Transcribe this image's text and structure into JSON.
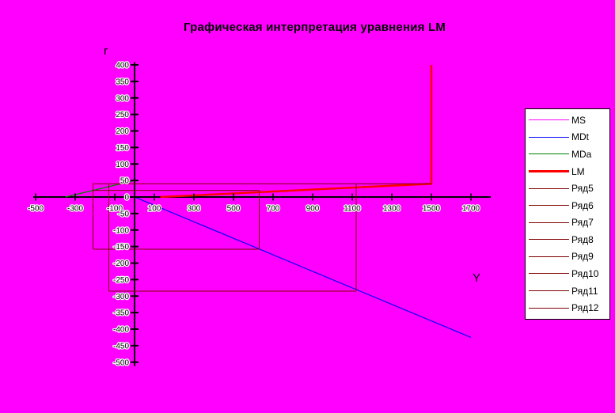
{
  "title": "Графическая интерпретация уравнения LM",
  "axis": {
    "x_title": "Y",
    "y_title": "r"
  },
  "colors": {
    "background": "#FF00FF",
    "axis": "#000000",
    "ms": "#FF00FF",
    "mdt": "#0000FF",
    "mda": "#008000",
    "lm": "#FF0000",
    "aux_series": "#800000",
    "legend_background": "#FFFFFF",
    "legend_border": "#000000"
  },
  "legend": {
    "position": "right",
    "items": [
      {
        "label": "MS",
        "color": "#FF00FF",
        "weight": 1
      },
      {
        "label": "MDt",
        "color": "#0000FF",
        "weight": 1
      },
      {
        "label": "MDa",
        "color": "#008000",
        "weight": 1
      },
      {
        "label": "LM",
        "color": "#FF0000",
        "weight": 3
      },
      {
        "label": "Ряд5",
        "color": "#800000",
        "weight": 1
      },
      {
        "label": "Ряд6",
        "color": "#800000",
        "weight": 1
      },
      {
        "label": "Ряд7",
        "color": "#800000",
        "weight": 1
      },
      {
        "label": "Ряд8",
        "color": "#800000",
        "weight": 1
      },
      {
        "label": "Ряд9",
        "color": "#800000",
        "weight": 1
      },
      {
        "label": "Ряд10",
        "color": "#800000",
        "weight": 1
      },
      {
        "label": "Ряд11",
        "color": "#800000",
        "weight": 1
      },
      {
        "label": "Ряд12",
        "color": "#800000",
        "weight": 1
      }
    ]
  },
  "chart_data": {
    "type": "line",
    "title": "Графическая интерпретация уравнения LM",
    "xlabel": "Y",
    "ylabel": "r",
    "xlim": [
      -500,
      1800
    ],
    "ylim": [
      -500,
      400
    ],
    "grid": false,
    "legend_position": "right",
    "x_ticks": [
      -500,
      -300,
      -100,
      100,
      300,
      500,
      700,
      900,
      1100,
      1300,
      1500,
      1700
    ],
    "y_ticks": [
      400,
      350,
      300,
      250,
      200,
      150,
      100,
      50,
      0,
      -50,
      -100,
      -150,
      -200,
      -250,
      -300,
      -350,
      -400,
      -450,
      -500
    ],
    "series": [
      {
        "name": "MS",
        "color": "#FF00FF",
        "width": 1.2,
        "visible": false,
        "points": []
      },
      {
        "name": "MDt",
        "color": "#0000FF",
        "width": 1.2,
        "visible": true,
        "points": [
          [
            0,
            0
          ],
          [
            1700,
            -425
          ]
        ]
      },
      {
        "name": "MDa",
        "color": "#008000",
        "width": 1.3,
        "visible": true,
        "points": [
          [
            -350,
            0
          ],
          [
            0,
            50
          ]
        ]
      },
      {
        "name": "LM",
        "color": "#FF0000",
        "width": 2.5,
        "visible": true,
        "points": [
          [
            130,
            0
          ],
          [
            1500,
            40
          ],
          [
            1500,
            400
          ]
        ]
      },
      {
        "name": "Ряд5",
        "color": "#800000",
        "width": 1,
        "visible": true,
        "points": [
          [
            -210,
            20
          ],
          [
            630,
            20
          ]
        ]
      },
      {
        "name": "Ряд6",
        "color": "#800000",
        "width": 1,
        "visible": true,
        "points": [
          [
            630,
            20
          ],
          [
            630,
            -158
          ]
        ]
      },
      {
        "name": "Ряд7",
        "color": "#800000",
        "width": 1,
        "visible": true,
        "points": [
          [
            -210,
            -158
          ],
          [
            630,
            -158
          ]
        ]
      },
      {
        "name": "Ряд8",
        "color": "#800000",
        "width": 1,
        "visible": true,
        "points": [
          [
            -210,
            40
          ],
          [
            -210,
            -158
          ]
        ]
      },
      {
        "name": "Ряд9",
        "color": "#800000",
        "width": 1,
        "visible": true,
        "points": [
          [
            -210,
            40
          ],
          [
            1500,
            40
          ]
        ]
      },
      {
        "name": "Ряд10",
        "color": "#800000",
        "width": 1,
        "visible": true,
        "points": [
          [
            -130,
            40
          ],
          [
            -130,
            -285
          ]
        ]
      },
      {
        "name": "Ряд11",
        "color": "#800000",
        "width": 1,
        "visible": true,
        "points": [
          [
            -130,
            -285
          ],
          [
            1120,
            -285
          ]
        ]
      },
      {
        "name": "Ряд12",
        "color": "#800000",
        "width": 1,
        "visible": true,
        "points": [
          [
            1120,
            40
          ],
          [
            1120,
            -285
          ]
        ]
      }
    ]
  }
}
